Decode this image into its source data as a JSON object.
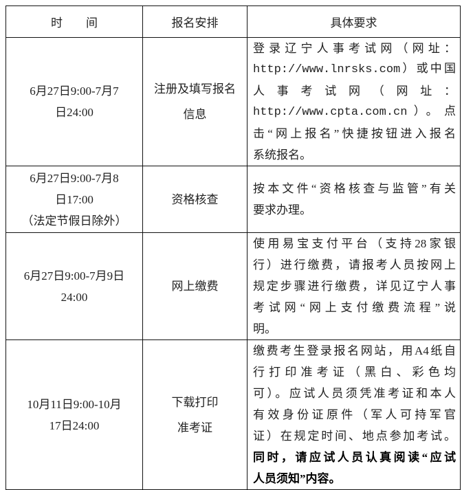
{
  "header": {
    "time": "时　　间",
    "arrangement": "报名安排",
    "requirements": "具体要求"
  },
  "rows": [
    {
      "time": [
        "6月27日9:00-7月7",
        "日24:00"
      ],
      "arrangement": [
        "注册及填写报名",
        "信息"
      ],
      "requirements": [
        "登录辽宁人事考试网（网址：",
        "http://www.lnrsks.com）或中国",
        "人 事 考 试 网 （ 网 址 ：",
        "http://www.cpta.com.cn）。点",
        "击“网上报名”快捷按钮进入报名",
        "系统报名。"
      ]
    },
    {
      "time": [
        "6月27日9:00-7月8",
        "日17:00",
        "（法定节假日除外）"
      ],
      "arrangement": [
        "资格核查"
      ],
      "requirements": [
        "按本文件“资格核查与监管”有关",
        "要求办理。"
      ]
    },
    {
      "time": [
        "6月27日9:00-7月9日",
        "24:00"
      ],
      "arrangement": [
        "网上缴费"
      ],
      "requirements": [
        "使用易宝支付平台（支持28家银",
        "行）进行缴费，请报考人员按网上",
        "规定步骤进行缴费，详见辽宁人事",
        "考试网“网上支付缴费流程”说",
        "明。"
      ]
    },
    {
      "time": [
        "10月11日9:00-10月",
        "17日24:00"
      ],
      "arrangement": [
        "下载打印",
        "准考证"
      ],
      "requirements": [
        "缴费考生登录报名网站，用A4纸自",
        "行打印准考证（黑白、彩色均",
        "可）。应试人员须凭准考证和本人",
        "有效身份证原件（军人可持军官",
        "证）在规定时间、地点参加考试。"
      ],
      "requirements_bold": [
        "同时，请应试人员认真阅读“应试",
        "人员须知”内容。"
      ]
    }
  ]
}
